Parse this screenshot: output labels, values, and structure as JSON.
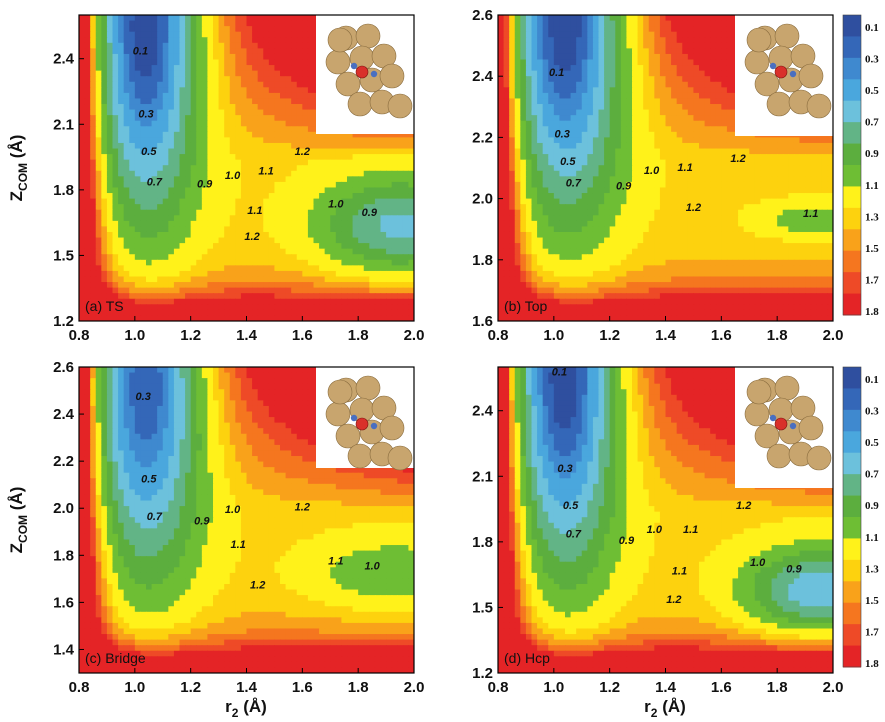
{
  "chart_data": {
    "type": "contour",
    "colorbar": {
      "levels": [
        "0.1",
        "0.3",
        "0.5",
        "0.7",
        "0.9",
        "1.1",
        "1.3",
        "1.5",
        "1.7",
        "1.8"
      ],
      "colors": [
        "#2f4f9f",
        "#3467b8",
        "#3f89cf",
        "#4aa7dd",
        "#6cc1dc",
        "#62b486",
        "#5cae3e",
        "#6ebe34",
        "#fff21a",
        "#fdd20e",
        "#f9a21a",
        "#f5761f",
        "#ee4a27",
        "#e42426"
      ]
    },
    "axis_label_common": {
      "x": "r",
      "x_sub": "2",
      "x_unit": " (Å)",
      "y": "Z",
      "y_sub": "COM",
      "y_unit": " (Å)"
    },
    "panels": [
      {
        "id": "a",
        "label": "(a) TS",
        "xlim": [
          0.8,
          2.0
        ],
        "ylim": [
          1.2,
          2.6
        ],
        "xticks": [
          "0.8",
          "1.0",
          "1.2",
          "1.4",
          "1.6",
          "1.8",
          "2.0"
        ],
        "yticks": [
          {
            "v": 1.2,
            "t": "1.2"
          },
          {
            "v": 1.5,
            "t": "1.5"
          },
          {
            "v": 1.8,
            "t": "1.8"
          },
          {
            "v": 2.1,
            "t": "2.1"
          },
          {
            "v": 2.4,
            "t": "2.4"
          }
        ],
        "wells": [
          {
            "x0": 1.03,
            "y0": 2.55,
            "A": 1.25,
            "ax": 0.2,
            "ay": 0.9
          },
          {
            "x0": 1.95,
            "y0": 1.63,
            "A": 0.7,
            "ax": 0.3,
            "ay": 0.23
          }
        ],
        "contour_labels": [
          {
            "x": 1.02,
            "y": 2.42,
            "t": "0.1"
          },
          {
            "x": 1.04,
            "y": 2.13,
            "t": "0.3"
          },
          {
            "x": 1.05,
            "y": 1.96,
            "t": "0.5"
          },
          {
            "x": 1.07,
            "y": 1.82,
            "t": "0.7"
          },
          {
            "x": 1.25,
            "y": 1.81,
            "t": "0.9"
          },
          {
            "x": 1.35,
            "y": 1.85,
            "t": "1.0"
          },
          {
            "x": 1.47,
            "y": 1.87,
            "t": "1.1"
          },
          {
            "x": 1.6,
            "y": 1.96,
            "t": "1.2"
          },
          {
            "x": 1.43,
            "y": 1.69,
            "t": "1.1"
          },
          {
            "x": 1.42,
            "y": 1.57,
            "t": "1.2"
          },
          {
            "x": 1.72,
            "y": 1.72,
            "t": "1.0"
          },
          {
            "x": 1.84,
            "y": 1.68,
            "t": "0.9"
          }
        ]
      },
      {
        "id": "b",
        "label": "(b) Top",
        "xlim": [
          0.8,
          2.0
        ],
        "ylim": [
          1.6,
          2.6
        ],
        "xticks": [
          "0.8",
          "1.0",
          "1.2",
          "1.4",
          "1.6",
          "1.8",
          "2.0"
        ],
        "yticks": [
          {
            "v": 1.6,
            "t": "1.6"
          },
          {
            "v": 1.8,
            "t": "1.8"
          },
          {
            "v": 2.0,
            "t": "2.0"
          },
          {
            "v": 2.2,
            "t": "2.2"
          },
          {
            "v": 2.4,
            "t": "2.4"
          },
          {
            "v": 2.6,
            "t": "2.6"
          }
        ],
        "wells": [
          {
            "x0": 1.03,
            "y0": 2.58,
            "A": 1.25,
            "ax": 0.22,
            "ay": 0.64
          },
          {
            "x0": 1.92,
            "y0": 1.93,
            "A": 0.3,
            "ax": 0.2,
            "ay": 0.06
          }
        ],
        "contour_labels": [
          {
            "x": 1.01,
            "y": 2.4,
            "t": "0.1"
          },
          {
            "x": 1.03,
            "y": 2.2,
            "t": "0.3"
          },
          {
            "x": 1.05,
            "y": 2.11,
            "t": "0.5"
          },
          {
            "x": 1.07,
            "y": 2.04,
            "t": "0.7"
          },
          {
            "x": 1.25,
            "y": 2.03,
            "t": "0.9"
          },
          {
            "x": 1.35,
            "y": 2.08,
            "t": "1.0"
          },
          {
            "x": 1.47,
            "y": 2.09,
            "t": "1.1"
          },
          {
            "x": 1.66,
            "y": 2.12,
            "t": "1.2"
          },
          {
            "x": 1.5,
            "y": 1.96,
            "t": "1.2"
          },
          {
            "x": 1.92,
            "y": 1.94,
            "t": "1.1"
          }
        ]
      },
      {
        "id": "c",
        "label": "(c) Bridge",
        "xlim": [
          0.8,
          2.0
        ],
        "ylim": [
          1.3,
          2.6
        ],
        "xticks": [
          "0.8",
          "1.0",
          "1.2",
          "1.4",
          "1.6",
          "1.8",
          "2.0"
        ],
        "xticks_override": {
          "3": "1.4"
        },
        "yticks": [
          {
            "v": 1.4,
            "t": "1.4"
          },
          {
            "v": 1.6,
            "t": "1.6"
          },
          {
            "v": 1.8,
            "t": "1.8"
          },
          {
            "v": 2.0,
            "t": "2.0"
          },
          {
            "v": 2.2,
            "t": "2.2"
          },
          {
            "v": 2.4,
            "t": "2.4"
          },
          {
            "v": 2.6,
            "t": "2.6"
          }
        ],
        "wells": [
          {
            "x0": 1.03,
            "y0": 2.5,
            "A": 1.15,
            "ax": 0.21,
            "ay": 0.8
          },
          {
            "x0": 1.93,
            "y0": 1.72,
            "A": 0.35,
            "ax": 0.3,
            "ay": 0.15
          }
        ],
        "contour_labels": [
          {
            "x": 1.03,
            "y": 2.46,
            "t": "0.3"
          },
          {
            "x": 1.05,
            "y": 2.11,
            "t": "0.5"
          },
          {
            "x": 1.07,
            "y": 1.95,
            "t": "0.7"
          },
          {
            "x": 1.24,
            "y": 1.93,
            "t": "0.9"
          },
          {
            "x": 1.35,
            "y": 1.98,
            "t": "1.0"
          },
          {
            "x": 1.37,
            "y": 1.83,
            "t": "1.1"
          },
          {
            "x": 1.6,
            "y": 1.99,
            "t": "1.2"
          },
          {
            "x": 1.44,
            "y": 1.66,
            "t": "1.2"
          },
          {
            "x": 1.72,
            "y": 1.76,
            "t": "1.1"
          },
          {
            "x": 1.85,
            "y": 1.74,
            "t": "1.0"
          }
        ]
      },
      {
        "id": "d",
        "label": "(d) Hcp",
        "xlim": [
          0.8,
          2.0
        ],
        "ylim": [
          1.2,
          2.6
        ],
        "xticks": [
          "0.8",
          "1.0",
          "1.2",
          "1.4",
          "1.6",
          "1.8",
          "2.0"
        ],
        "yticks": [
          {
            "v": 1.2,
            "t": "1.2"
          },
          {
            "v": 1.5,
            "t": "1.5"
          },
          {
            "v": 1.8,
            "t": "1.8"
          },
          {
            "v": 2.1,
            "t": "2.1"
          },
          {
            "v": 2.4,
            "t": "2.4"
          }
        ],
        "wells": [
          {
            "x0": 1.03,
            "y0": 2.55,
            "A": 1.25,
            "ax": 0.2,
            "ay": 0.9
          },
          {
            "x0": 1.95,
            "y0": 1.57,
            "A": 0.8,
            "ax": 0.27,
            "ay": 0.2
          }
        ],
        "contour_labels": [
          {
            "x": 1.02,
            "y": 2.56,
            "t": "0.1"
          },
          {
            "x": 1.04,
            "y": 2.12,
            "t": "0.3"
          },
          {
            "x": 1.06,
            "y": 1.95,
            "t": "0.5"
          },
          {
            "x": 1.07,
            "y": 1.82,
            "t": "0.7"
          },
          {
            "x": 1.26,
            "y": 1.79,
            "t": "0.9"
          },
          {
            "x": 1.36,
            "y": 1.84,
            "t": "1.0"
          },
          {
            "x": 1.49,
            "y": 1.84,
            "t": "1.1"
          },
          {
            "x": 1.68,
            "y": 1.95,
            "t": "1.2"
          },
          {
            "x": 1.45,
            "y": 1.65,
            "t": "1.1"
          },
          {
            "x": 1.43,
            "y": 1.52,
            "t": "1.2"
          },
          {
            "x": 1.73,
            "y": 1.69,
            "t": "1.0"
          },
          {
            "x": 1.86,
            "y": 1.66,
            "t": "0.9"
          }
        ]
      }
    ]
  }
}
